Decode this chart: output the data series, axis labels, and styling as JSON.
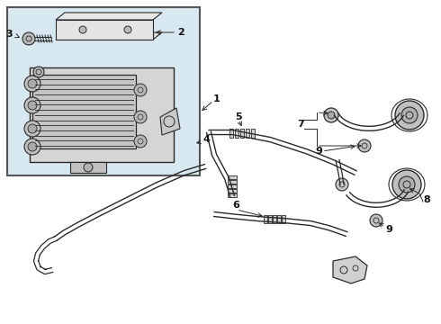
{
  "bg_color": "#ffffff",
  "box_bg": "#d8e8f0",
  "line_color": "#2a2a2a",
  "label_color": "#111111",
  "fig_width": 4.9,
  "fig_height": 3.6,
  "dpi": 100
}
